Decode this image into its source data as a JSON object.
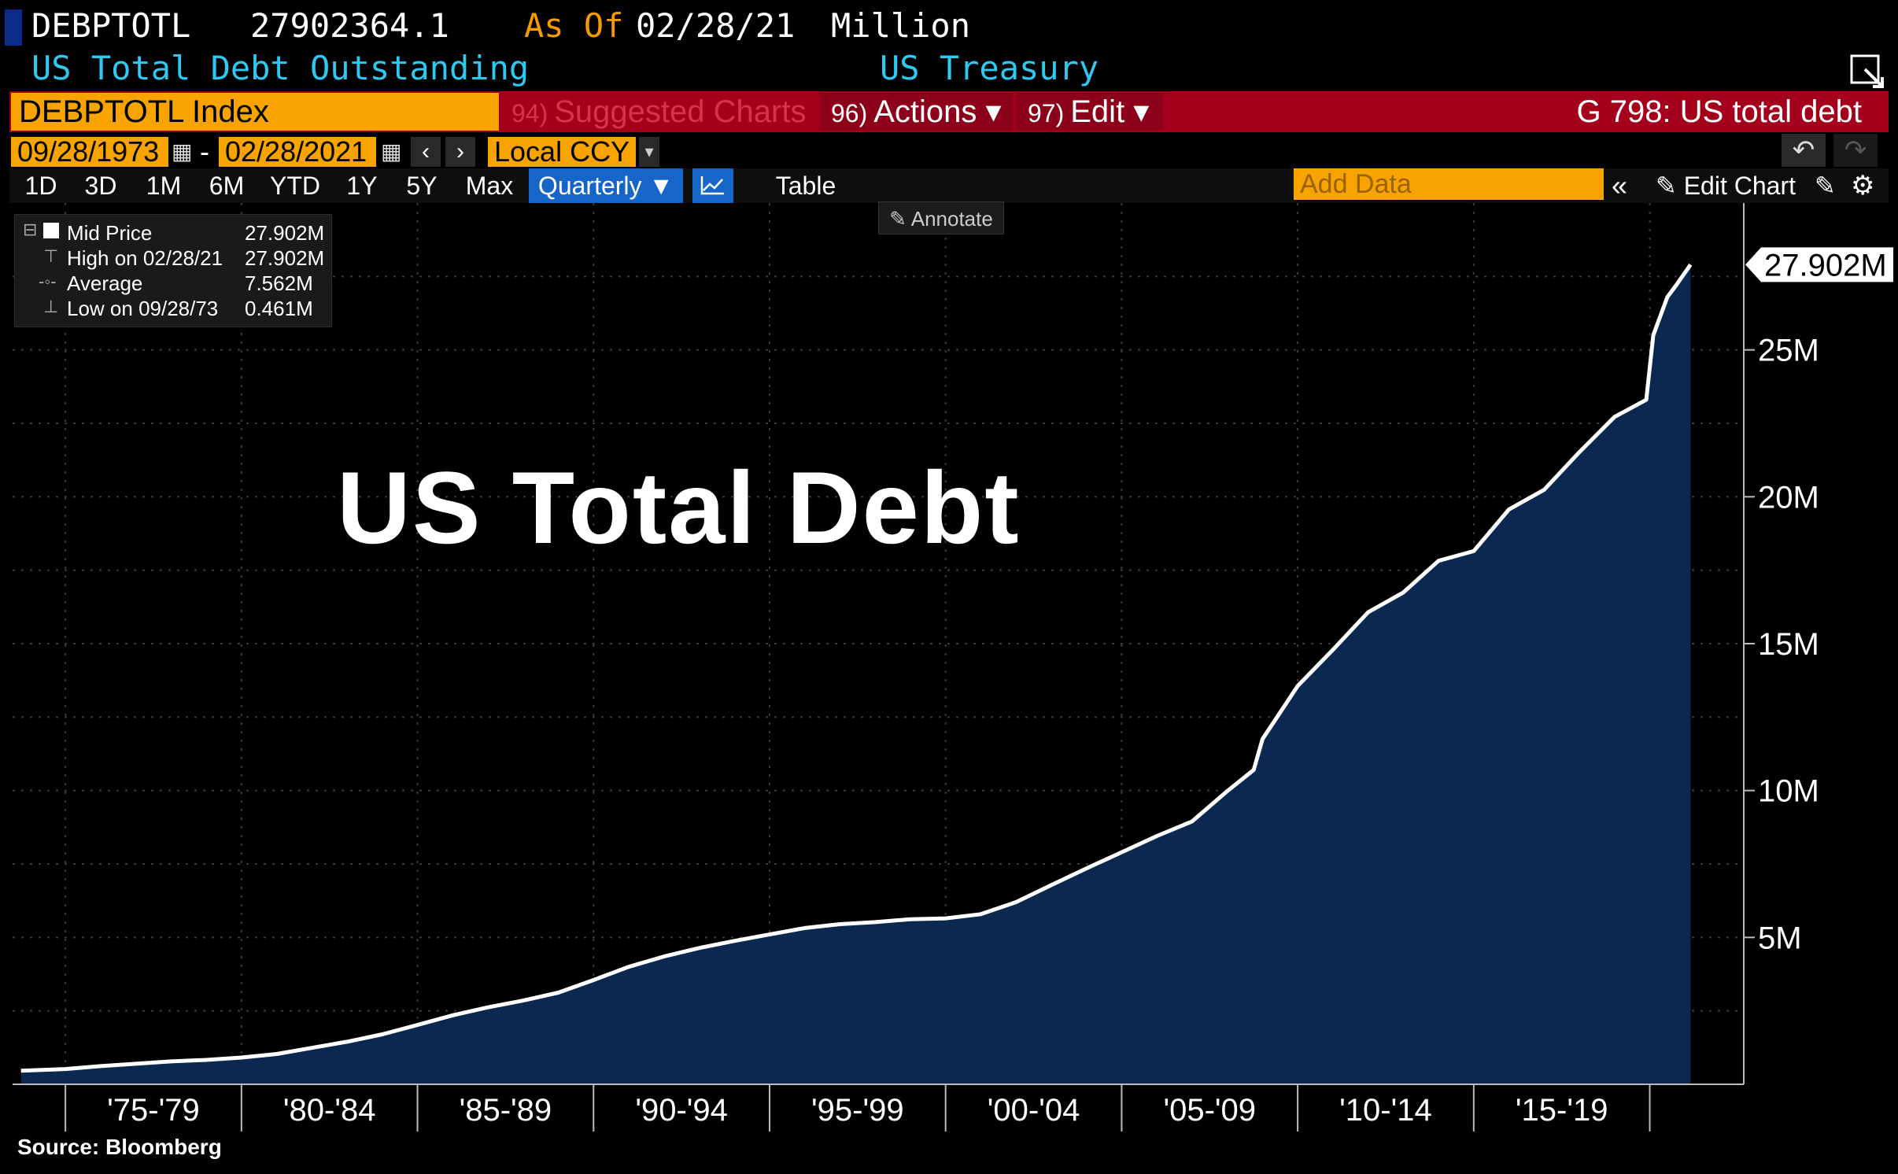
{
  "header": {
    "ticker": "DEBPTOTL",
    "last_value": "27902364.1",
    "asof_label": "As Of",
    "asof_date": "02/28/21",
    "units": "Million",
    "description": "US Total Debt Outstanding",
    "source_name": "US Treasury"
  },
  "command_bar": {
    "security": "DEBPTOTL Index",
    "suggested_num": "94)",
    "suggested_label": "Suggested Charts",
    "actions_num": "96)",
    "actions_label": "Actions ▾",
    "edit_num": "97)",
    "edit_label": "Edit ▾",
    "title": "G 798: US total debt"
  },
  "date_row": {
    "start": "09/28/1973",
    "dash": "-",
    "end": "02/28/2021",
    "currency": "Local CCY"
  },
  "periods": [
    "1D",
    "3D",
    "1M",
    "6M",
    "YTD",
    "1Y",
    "5Y",
    "Max"
  ],
  "period_selected": "Quarterly ▼",
  "table_label": "Table",
  "add_data_placeholder": "Add Data",
  "edit_chart_label": "Edit Chart",
  "annotate_label": "Annotate",
  "legend": {
    "series_label": "Mid Price",
    "series_value": "27.902M",
    "high_label": "High on 02/28/21",
    "high_value": "27.902M",
    "avg_label": "Average",
    "avg_value": "7.562M",
    "low_label": "Low on 09/28/73",
    "low_value": "0.461M"
  },
  "overlay_title": "US Total Debt",
  "footer_source": "Source: Bloomberg",
  "colors": {
    "background": "#000000",
    "area_fill": "#0b2850",
    "line": "#ffffff",
    "command_bar": "#a4001c",
    "orange": "#f7a300",
    "cyan": "#2ec8f0",
    "selected_blue": "#1665c8"
  },
  "chart_data": {
    "type": "area",
    "title": "",
    "xlabel": "",
    "ylabel": "",
    "ylim": [
      0,
      30
    ],
    "xlim": [
      1973.5,
      2022.67
    ],
    "y_unit": "M",
    "x_tick_labels": [
      "'75-'79",
      "'80-'84",
      "'85-'89",
      "'90-'94",
      "'95-'99",
      "'00-'04",
      "'05-'09",
      "'10-'14",
      "'15-'19"
    ],
    "x_tick_boundaries": [
      1975,
      1980,
      1985,
      1990,
      1995,
      2000,
      2005,
      2010,
      2015,
      2020
    ],
    "y_ticks": [
      5,
      10,
      15,
      20,
      25
    ],
    "y_tick_labels": [
      "5M",
      "10M",
      "15M",
      "20M",
      "25M"
    ],
    "last_value_label": "27.902M",
    "last_value": 27.902,
    "series": [
      {
        "name": "Mid Price",
        "x": [
          1973.74,
          1975,
          1976,
          1977,
          1978,
          1979,
          1980,
          1981,
          1982,
          1983,
          1984,
          1985,
          1986,
          1987,
          1988,
          1989,
          1990,
          1991,
          1992,
          1993,
          1994,
          1995,
          1996,
          1997,
          1998,
          1999,
          2000,
          2001,
          2002,
          2003,
          2004,
          2005,
          2006,
          2007,
          2008,
          2008.75,
          2009,
          2010,
          2011,
          2012,
          2013,
          2014,
          2015,
          2016,
          2017,
          2018,
          2019,
          2019.9,
          2020.1,
          2020.5,
          2020.75,
          2021.16
        ],
        "y": [
          0.461,
          0.52,
          0.62,
          0.7,
          0.78,
          0.83,
          0.91,
          1.03,
          1.24,
          1.45,
          1.7,
          2.02,
          2.35,
          2.62,
          2.85,
          3.12,
          3.55,
          4.0,
          4.35,
          4.64,
          4.88,
          5.1,
          5.32,
          5.45,
          5.52,
          5.62,
          5.65,
          5.79,
          6.2,
          6.78,
          7.35,
          7.9,
          8.45,
          8.95,
          9.98,
          10.7,
          11.75,
          13.56,
          14.79,
          16.07,
          16.74,
          17.82,
          18.15,
          19.57,
          20.24,
          21.52,
          22.72,
          23.3,
          25.5,
          26.8,
          27.2,
          27.902
        ]
      }
    ],
    "grid": true,
    "legend_position": "top-left"
  }
}
